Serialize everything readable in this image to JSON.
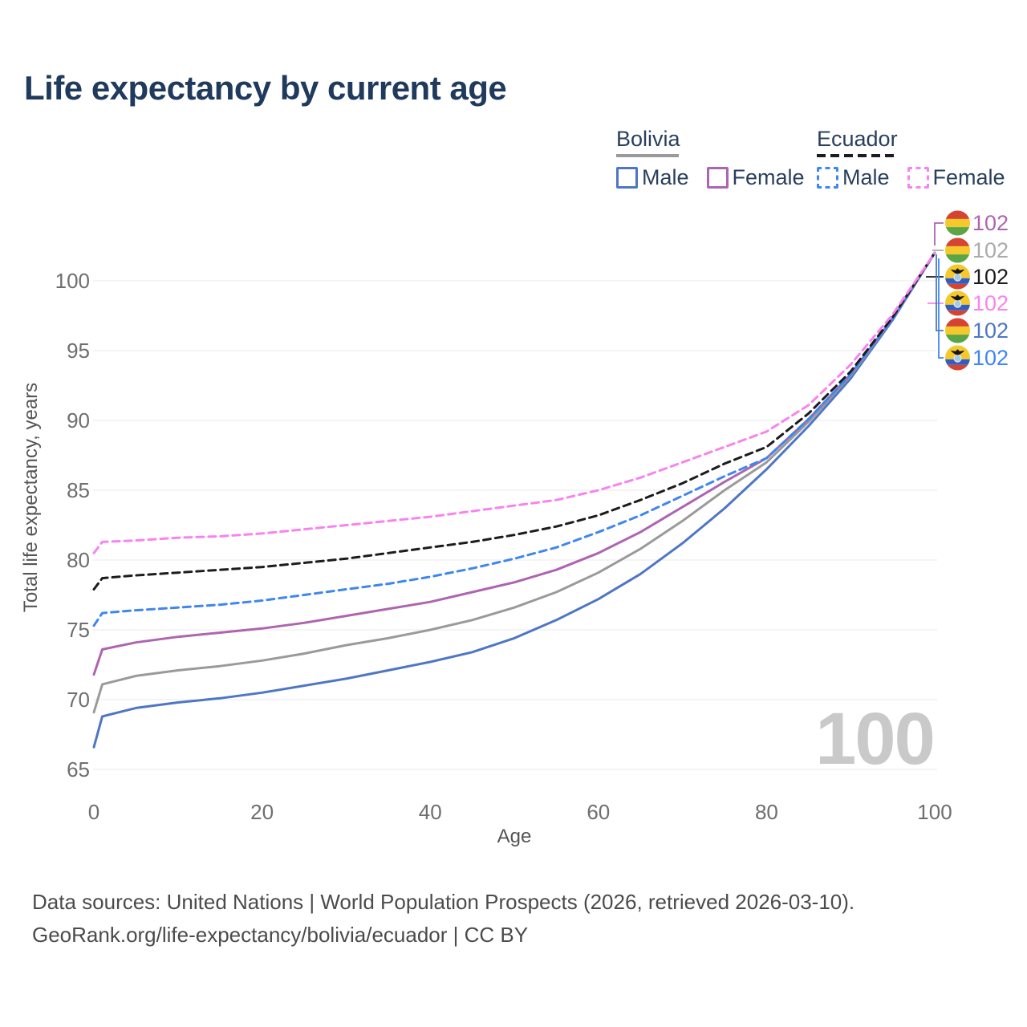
{
  "title": "Life expectancy by current age",
  "watermark": "100",
  "legend": {
    "groups": [
      {
        "country": "Bolivia",
        "line_style": "solid",
        "underline_color": "#9a9a9a",
        "items": [
          {
            "label": "Male",
            "color": "#4e76c5"
          },
          {
            "label": "Female",
            "color": "#ad65b1"
          }
        ]
      },
      {
        "country": "Ecuador",
        "line_style": "dashed",
        "underline_color": "#1c1c1c",
        "items": [
          {
            "label": "Male",
            "color": "#3e87ef"
          },
          {
            "label": "Female",
            "color": "#f983ee"
          }
        ]
      }
    ]
  },
  "chart_data": {
    "type": "line",
    "title": "Life expectancy by current age",
    "xlabel": "Age",
    "ylabel": "Total life expectancy, years",
    "xlim": [
      0,
      100
    ],
    "ylim": [
      65,
      102
    ],
    "x_ticks": [
      0,
      20,
      40,
      60,
      80,
      100
    ],
    "y_ticks": [
      65,
      70,
      75,
      80,
      85,
      90,
      95,
      100
    ],
    "grid": "horizontal",
    "legend_position": "top-right",
    "x": [
      0,
      1,
      5,
      10,
      15,
      20,
      25,
      30,
      35,
      40,
      45,
      50,
      55,
      60,
      65,
      70,
      75,
      80,
      85,
      90,
      95,
      100
    ],
    "series": [
      {
        "id": "bolivia-male",
        "name": "Bolivia Male",
        "country": "Bolivia",
        "sex": "Male",
        "color": "#4e76c5",
        "dash": "solid",
        "values": [
          66.6,
          68.8,
          69.4,
          69.8,
          70.1,
          70.5,
          71.0,
          71.5,
          72.1,
          72.7,
          73.4,
          74.4,
          75.7,
          77.2,
          79.0,
          81.2,
          83.7,
          86.5,
          89.6,
          93.0,
          97.2,
          102
        ]
      },
      {
        "id": "bolivia-both",
        "name": "Bolivia Both sexes",
        "country": "Bolivia",
        "sex": "Both",
        "color": "#9a9a9a",
        "dash": "solid",
        "values": [
          69.1,
          71.1,
          71.7,
          72.1,
          72.4,
          72.8,
          73.3,
          73.9,
          74.4,
          75.0,
          75.7,
          76.6,
          77.7,
          79.1,
          80.8,
          82.8,
          85.0,
          87.0,
          89.9,
          93.2,
          97.3,
          102
        ]
      },
      {
        "id": "bolivia-female",
        "name": "Bolivia Female",
        "country": "Bolivia",
        "sex": "Female",
        "color": "#ad65b1",
        "dash": "solid",
        "values": [
          71.8,
          73.6,
          74.1,
          74.5,
          74.8,
          75.1,
          75.5,
          76.0,
          76.5,
          77.0,
          77.7,
          78.4,
          79.3,
          80.5,
          82.0,
          83.8,
          85.6,
          87.3,
          90.1,
          93.3,
          97.3,
          102
        ]
      },
      {
        "id": "ecuador-male",
        "name": "Ecuador Male",
        "country": "Ecuador",
        "sex": "Male",
        "color": "#3e87ef",
        "dash": "dashed",
        "values": [
          75.3,
          76.2,
          76.4,
          76.6,
          76.8,
          77.1,
          77.5,
          77.9,
          78.3,
          78.8,
          79.4,
          80.1,
          80.9,
          82.0,
          83.2,
          84.6,
          86.0,
          87.3,
          90.1,
          93.3,
          97.3,
          102
        ]
      },
      {
        "id": "ecuador-both",
        "name": "Ecuador Both sexes",
        "country": "Ecuador",
        "sex": "Both",
        "color": "#1c1c1c",
        "dash": "dashed",
        "values": [
          77.9,
          78.7,
          78.9,
          79.1,
          79.3,
          79.5,
          79.8,
          80.1,
          80.5,
          80.9,
          81.3,
          81.8,
          82.4,
          83.2,
          84.3,
          85.5,
          86.9,
          88.1,
          90.5,
          93.5,
          97.4,
          102
        ]
      },
      {
        "id": "ecuador-female",
        "name": "Ecuador Female",
        "country": "Ecuador",
        "sex": "Female",
        "color": "#f983ee",
        "dash": "dashed",
        "values": [
          80.5,
          81.3,
          81.4,
          81.6,
          81.7,
          81.9,
          82.2,
          82.5,
          82.8,
          83.1,
          83.5,
          83.9,
          84.3,
          85.0,
          85.9,
          87.0,
          88.1,
          89.2,
          91.1,
          94.0,
          97.6,
          102
        ]
      }
    ],
    "end_labels": [
      {
        "series": "Bolivia Female",
        "flag": "bolivia",
        "value": "102",
        "color": "#ad65b1"
      },
      {
        "series": "Bolivia Both sexes",
        "flag": "bolivia",
        "value": "102",
        "color": "#ababab"
      },
      {
        "series": "Ecuador Both sexes",
        "flag": "ecuador",
        "value": "102",
        "color": "#1c1c1c"
      },
      {
        "series": "Ecuador Female",
        "flag": "ecuador",
        "value": "102",
        "color": "#f983ee"
      },
      {
        "series": "Bolivia Male",
        "flag": "bolivia",
        "value": "102",
        "color": "#4e76c5"
      },
      {
        "series": "Ecuador Male",
        "flag": "ecuador",
        "value": "102",
        "color": "#3e87ef"
      }
    ]
  },
  "footer": {
    "line1": "Data sources: United Nations | World Population Prospects (2026, retrieved 2026-03-10).",
    "line2": "GeoRank.org/life-expectancy/bolivia/ecuador | CC BY"
  }
}
